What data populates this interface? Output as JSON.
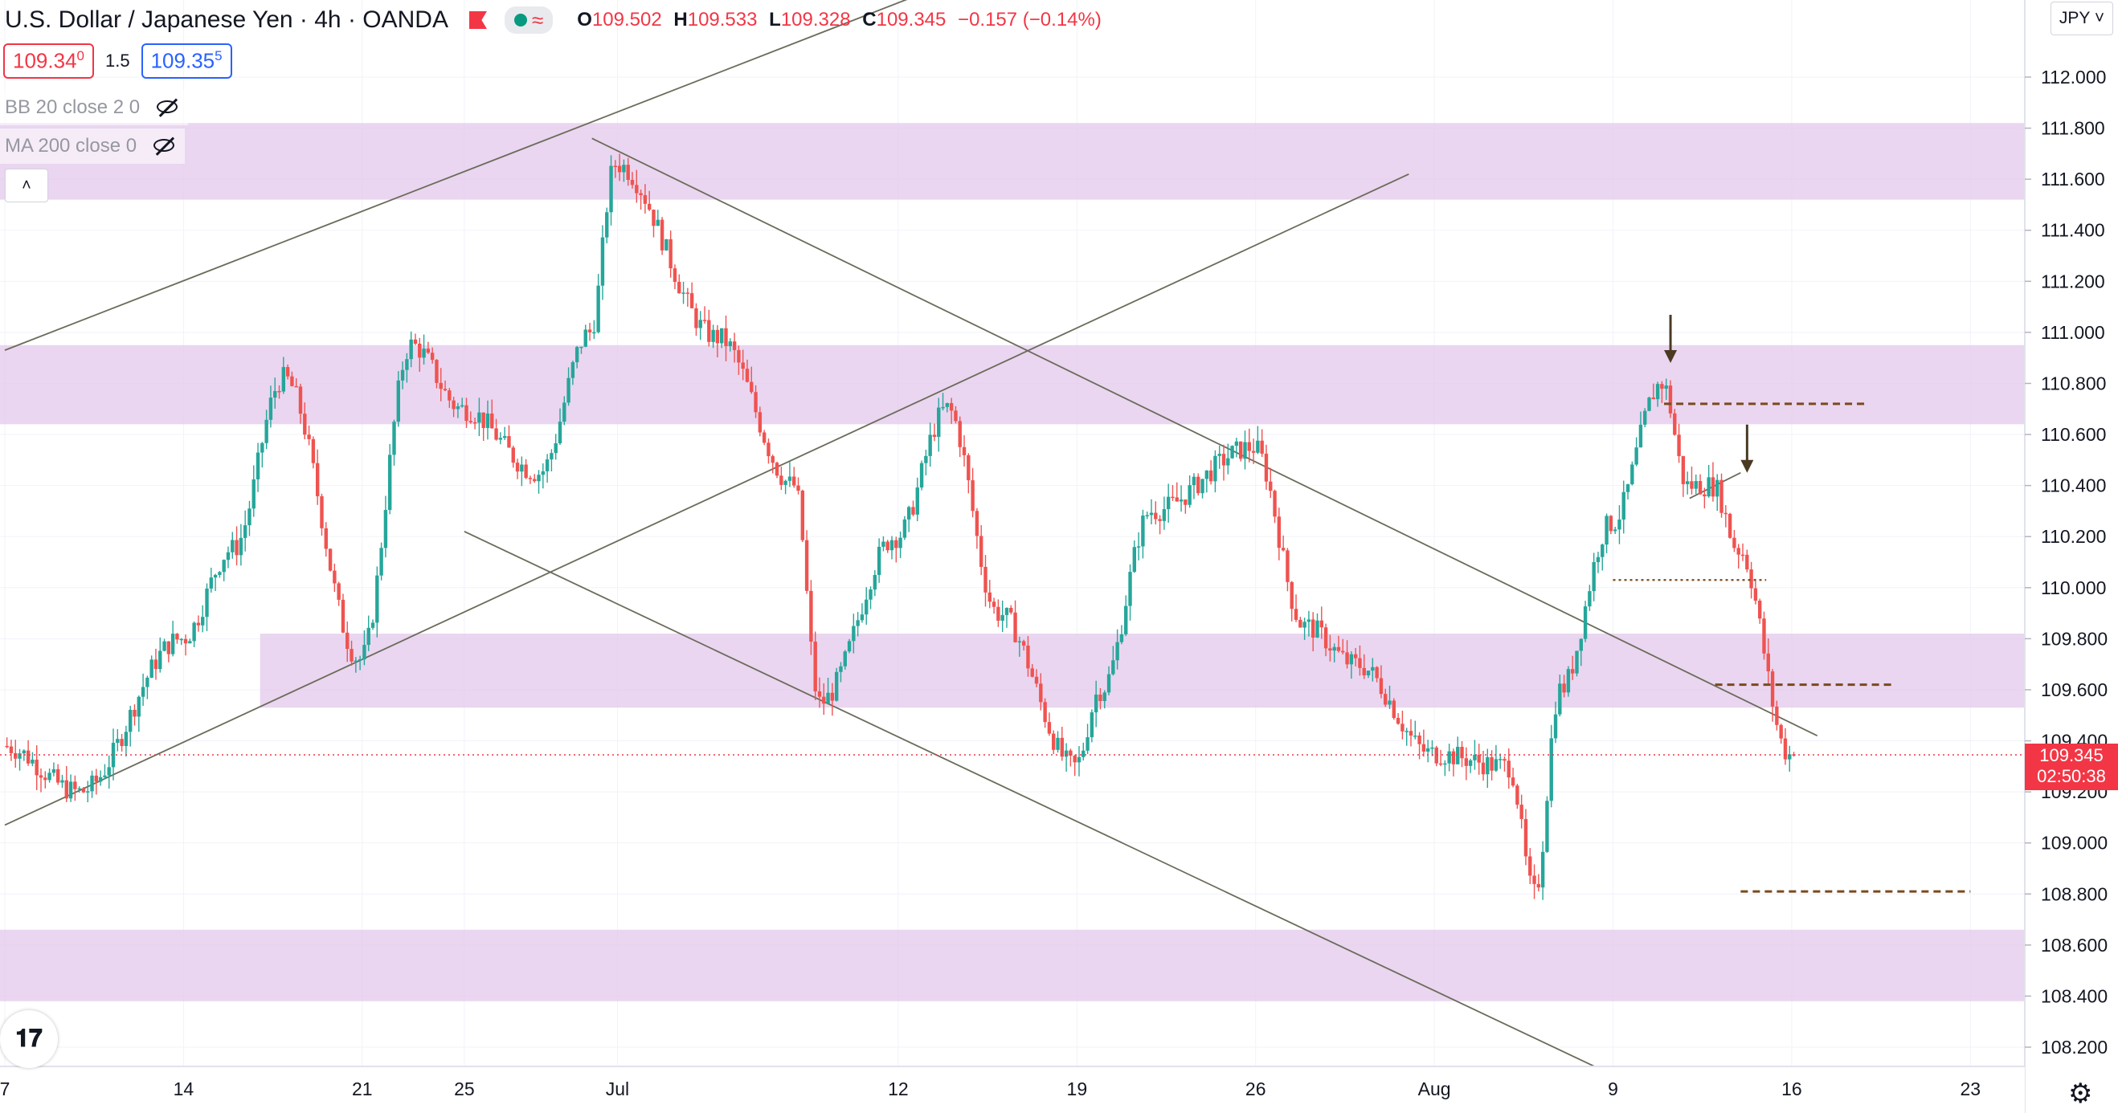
{
  "header": {
    "symbol": "U.S. Dollar / Japanese Yen",
    "interval": "4h",
    "broker": "OANDA",
    "ohlc": {
      "o_label": "O",
      "o": "109.502",
      "h_label": "H",
      "h": "109.533",
      "l_label": "L",
      "l": "109.328",
      "c_label": "C",
      "c": "109.345",
      "change": "−0.157 (−0.14%)"
    },
    "sell_price": "109.34",
    "sell_price_sup": "0",
    "spread": "1.5",
    "buy_price": "109.35",
    "buy_price_sup": "5"
  },
  "indicators": [
    {
      "label": "BB 20 close 2 0"
    },
    {
      "label": "MA 200 close 0"
    }
  ],
  "currency_button": "JPY",
  "last_price": {
    "price": "109.345",
    "countdown": "02:50:38"
  },
  "colors": {
    "up": "#26a69a",
    "down": "#ef5350",
    "zone": "#e1c4ea",
    "trendline": "#6b6b5a",
    "level": "#7a4a1c",
    "last_price": "#f23645",
    "buy": "#2962ff"
  },
  "icons": [
    "flag-icon",
    "market-status-icon",
    "wave-icon",
    "eye-off-icon",
    "chevron-up-icon",
    "tradingview-logo-icon",
    "gear-icon",
    "chevron-down-icon"
  ],
  "chart_data": {
    "type": "candlestick",
    "instrument": "U.S. Dollar / Japanese Yen",
    "timeframe": "4h",
    "y_ticks": [
      "112.000",
      "111.800",
      "111.600",
      "111.400",
      "111.200",
      "111.000",
      "110.800",
      "110.600",
      "110.400",
      "110.200",
      "110.000",
      "109.800",
      "109.600",
      "109.400",
      "109.200",
      "109.000",
      "108.800",
      "108.600",
      "108.400",
      "108.200"
    ],
    "x_ticks": [
      "7",
      "14",
      "21",
      "25",
      "Jul",
      "12",
      "19",
      "26",
      "Aug",
      "9",
      "16",
      "23"
    ],
    "ylim": [
      108.1,
      112.25
    ],
    "last_price": 109.345,
    "anchors": [
      {
        "date": "2021-06-07",
        "price": 109.38
      },
      {
        "date": "2021-06-10",
        "price": 109.2
      },
      {
        "date": "2021-06-14",
        "price": 109.8
      },
      {
        "date": "2021-06-16",
        "price": 110.15
      },
      {
        "date": "2021-06-18",
        "price": 110.82
      },
      {
        "date": "2021-06-21",
        "price": 109.72
      },
      {
        "date": "2021-06-23",
        "price": 110.95
      },
      {
        "date": "2021-06-25",
        "price": 110.7
      },
      {
        "date": "2021-06-28",
        "price": 110.45
      },
      {
        "date": "2021-06-30",
        "price": 111.0
      },
      {
        "date": "2021-07-01",
        "price": 111.66
      },
      {
        "date": "2021-07-05",
        "price": 110.98
      },
      {
        "date": "2021-07-08",
        "price": 110.4
      },
      {
        "date": "2021-07-09",
        "price": 109.55
      },
      {
        "date": "2021-07-12",
        "price": 110.2
      },
      {
        "date": "2021-07-14",
        "price": 110.7
      },
      {
        "date": "2021-07-16",
        "price": 109.9
      },
      {
        "date": "2021-07-19",
        "price": 109.3
      },
      {
        "date": "2021-07-20",
        "price": 109.6
      },
      {
        "date": "2021-07-22",
        "price": 110.3
      },
      {
        "date": "2021-07-26",
        "price": 110.55
      },
      {
        "date": "2021-07-28",
        "price": 109.85
      },
      {
        "date": "2021-07-30",
        "price": 109.7
      },
      {
        "date": "2021-08-02",
        "price": 109.35
      },
      {
        "date": "2021-08-05",
        "price": 109.3
      },
      {
        "date": "2021-08-06",
        "price": 108.8
      },
      {
        "date": "2021-08-07",
        "price": 109.6
      },
      {
        "date": "2021-08-09",
        "price": 110.25
      },
      {
        "date": "2021-08-11",
        "price": 110.8
      },
      {
        "date": "2021-08-12",
        "price": 110.4
      },
      {
        "date": "2021-08-13",
        "price": 110.4
      },
      {
        "date": "2021-08-14",
        "price": 110.15
      },
      {
        "date": "2021-08-16",
        "price": 109.345
      }
    ],
    "zones": [
      {
        "from_date": "2021-06-07",
        "to": "2021-08-26",
        "low": 111.52,
        "high": 111.82
      },
      {
        "from_date": "2021-06-07",
        "to": "2021-08-26",
        "low": 110.64,
        "high": 110.95
      },
      {
        "from_date": "2021-06-17",
        "to": "2021-08-26",
        "low": 109.53,
        "high": 109.82
      },
      {
        "from_date": "2021-06-07",
        "to": "2021-08-26",
        "low": 108.38,
        "high": 108.66
      }
    ],
    "trendlines": [
      {
        "points": [
          [
            "2021-06-07",
            110.93
          ],
          [
            "2021-07-13",
            112.33
          ]
        ]
      },
      {
        "points": [
          [
            "2021-06-07",
            109.07
          ],
          [
            "2021-08-01",
            111.62
          ]
        ]
      },
      {
        "points": [
          [
            "2021-06-25",
            110.22
          ],
          [
            "2021-08-09",
            108.09
          ]
        ]
      },
      {
        "points": [
          [
            "2021-06-30",
            111.76
          ],
          [
            "2021-08-17",
            109.42
          ]
        ]
      },
      {
        "points": [
          [
            "2021-08-12",
            110.35
          ],
          [
            "2021-08-14",
            110.45
          ]
        ]
      }
    ],
    "levels": [
      {
        "from_date": "2021-08-11",
        "to_date": "2021-08-19",
        "price": 110.72,
        "style": "dashed"
      },
      {
        "from_date": "2021-08-09",
        "to_date": "2021-08-15",
        "price": 110.03,
        "style": "dotted"
      },
      {
        "from_date": "2021-08-13",
        "to_date": "2021-08-20",
        "price": 109.62,
        "style": "dashed"
      },
      {
        "from_date": "2021-08-14",
        "to_date": "2021-08-23",
        "price": 108.81,
        "style": "dashed"
      }
    ],
    "arrows": [
      {
        "date": "2021-08-11",
        "price": 110.88,
        "direction": "down"
      },
      {
        "date": "2021-08-14",
        "price": 110.45,
        "direction": "down"
      }
    ]
  }
}
